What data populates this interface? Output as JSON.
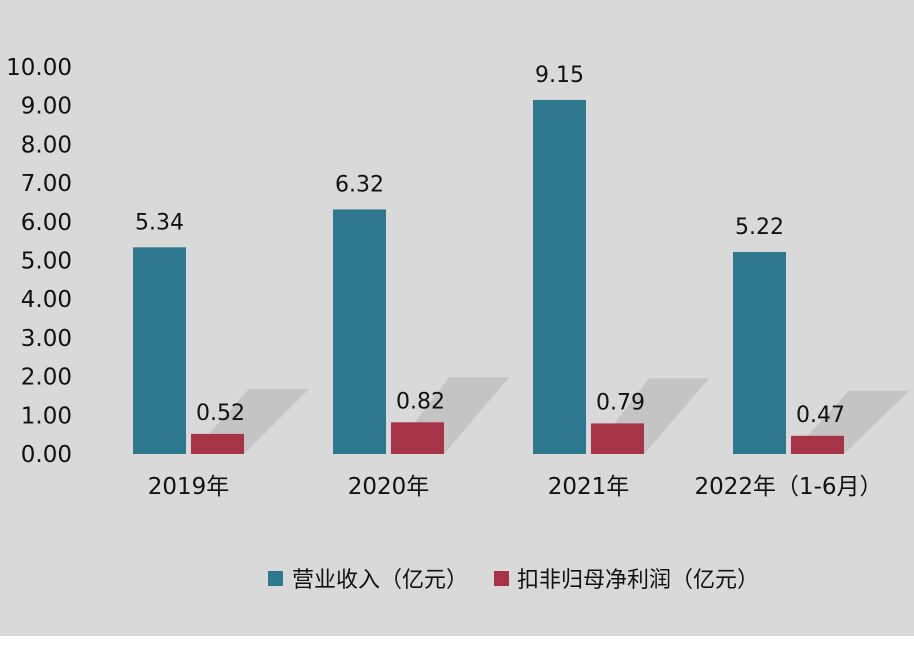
{
  "chart_data": {
    "type": "bar",
    "categories": [
      "2019年",
      "2020年",
      "2021年",
      "2022年（1-6月）"
    ],
    "series": [
      {
        "name": "营业收入（亿元）",
        "values": [
          5.34,
          6.32,
          9.15,
          5.22
        ],
        "color": "#2e788f"
      },
      {
        "name": "扣非归母净利润（亿元）",
        "values": [
          0.52,
          0.82,
          0.79,
          0.47
        ],
        "color": "#a63446"
      }
    ],
    "data_labels": [
      [
        "5.34",
        "6.32",
        "9.15",
        "5.22"
      ],
      [
        "0.52",
        "0.82",
        "0.79",
        "0.47"
      ]
    ],
    "y_ticks": [
      "0.00",
      "1.00",
      "2.00",
      "3.00",
      "4.00",
      "5.00",
      "6.00",
      "7.00",
      "8.00",
      "9.00",
      "10.00"
    ],
    "ylim": [
      0,
      10
    ],
    "title": "",
    "xlabel": "",
    "ylabel": "",
    "grid": false,
    "legend_position": "bottom",
    "background_color": "#d9d9d9"
  }
}
